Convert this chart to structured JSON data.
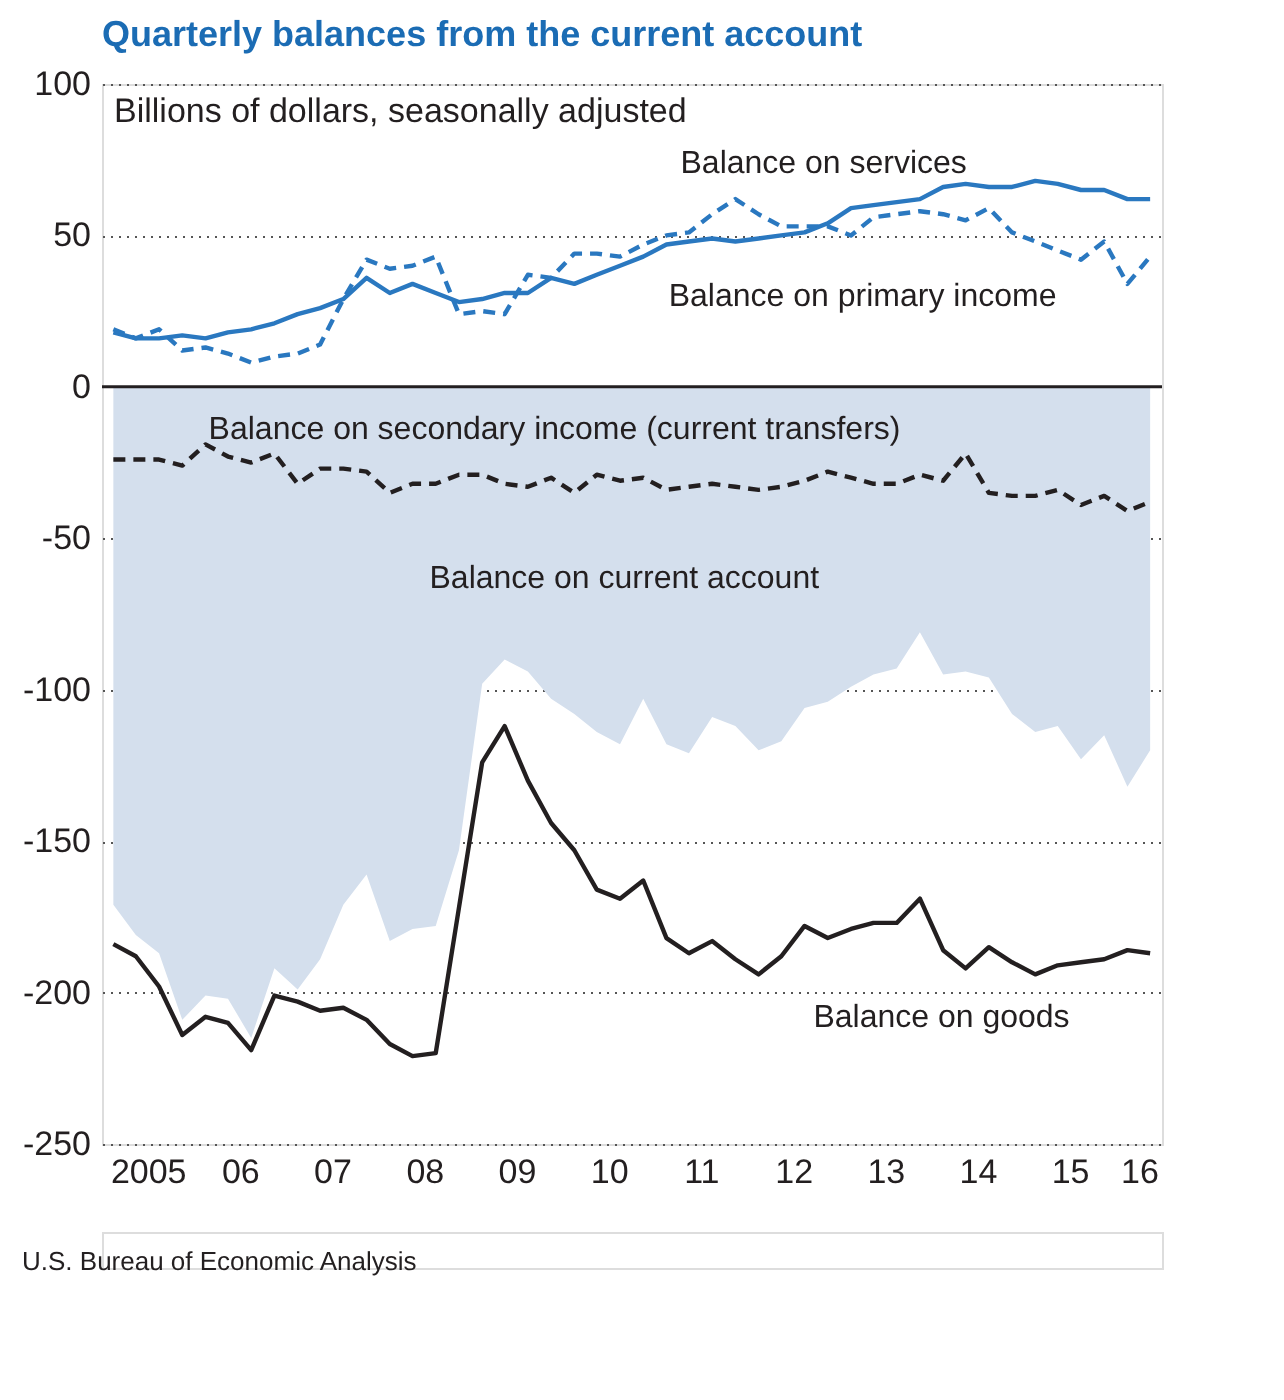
{
  "chart_data": {
    "type": "line",
    "title": "Quarterly balances from the current account",
    "subtitle": "Billions of dollars, seasonally adjusted",
    "x": [
      "2005-02-15",
      "2005-05-15",
      "2005-08-15",
      "2005-11-15",
      "2006-02-15",
      "2006-05-15",
      "2006-08-15",
      "2006-11-15",
      "2007-02-15",
      "2007-05-15",
      "2007-08-15",
      "2007-11-15",
      "2008-02-15",
      "2008-05-15",
      "2008-08-15",
      "2008-11-15",
      "2009-02-15",
      "2009-05-15",
      "2009-08-15",
      "2009-11-15",
      "2010-02-15",
      "2010-05-15",
      "2010-08-15",
      "2010-11-15",
      "2011-02-15",
      "2011-05-15",
      "2011-08-15",
      "2011-11-15",
      "2012-02-15",
      "2012-05-15",
      "2012-08-15",
      "2012-11-15",
      "2013-02-15",
      "2013-05-15",
      "2013-08-15",
      "2013-11-15",
      "2014-02-15",
      "2014-05-15",
      "2014-08-15",
      "2014-11-15",
      "2015-02-15",
      "2015-05-15",
      "2015-08-15",
      "2015-11-15",
      "2016-02-15",
      "2016-05-15"
    ],
    "series": [
      {
        "name": "Balance on current account",
        "type": "area",
        "color": "#d4dfed",
        "values": [
          -171,
          -181,
          -187,
          -209,
          -201,
          -202,
          -215,
          -192,
          -199,
          -189,
          -171,
          -161,
          -183,
          -179,
          -178,
          -153,
          -98,
          -90,
          -94,
          -103,
          -108,
          -114,
          -118,
          -103,
          -118,
          -121,
          -109,
          -112,
          -120,
          -117,
          -106,
          -104,
          -99,
          -95,
          -93,
          -81,
          -95,
          -94,
          -96,
          -108,
          -114,
          -112,
          -123,
          -115,
          -132,
          -120
        ]
      },
      {
        "name": "Balance on services",
        "line_style": "solid",
        "color": "#2a78c0",
        "values": [
          18,
          16,
          16,
          17,
          16,
          18,
          19,
          21,
          24,
          26,
          29,
          36,
          31,
          34,
          31,
          28,
          29,
          31,
          31,
          36,
          34,
          37,
          40,
          43,
          47,
          48,
          49,
          48,
          49,
          50,
          51,
          54,
          59,
          60,
          61,
          62,
          66,
          67,
          66,
          66,
          68,
          67,
          65,
          65,
          62,
          62
        ]
      },
      {
        "name": "Balance on primary income",
        "line_style": "dashed",
        "color": "#2a78c0",
        "values": [
          19,
          16,
          19,
          12,
          13,
          11,
          8,
          10,
          11,
          14,
          29,
          42,
          39,
          40,
          43,
          24,
          25,
          24,
          37,
          36,
          44,
          44,
          43,
          47,
          50,
          51,
          57,
          62,
          57,
          53,
          53,
          53,
          50,
          56,
          57,
          58,
          57,
          55,
          59,
          51,
          48,
          45,
          42,
          48,
          34,
          43
        ]
      },
      {
        "name": "Balance on secondary income (current transfers)",
        "line_style": "dashed",
        "color": "#231f20",
        "values": [
          -24,
          -24,
          -24,
          -26,
          -19,
          -23,
          -25,
          -22,
          -32,
          -27,
          -27,
          -28,
          -35,
          -32,
          -32,
          -29,
          -29,
          -32,
          -33,
          -30,
          -35,
          -29,
          -31,
          -30,
          -34,
          -33,
          -32,
          -33,
          -34,
          -33,
          -31,
          -28,
          -30,
          -32,
          -32,
          -29,
          -31,
          -22,
          -35,
          -36,
          -36,
          -34,
          -39,
          -36,
          -41,
          -38
        ]
      },
      {
        "name": "Balance on goods",
        "line_style": "solid",
        "color": "#231f20",
        "values": [
          -184,
          -188,
          -198,
          -214,
          -208,
          -210,
          -219,
          -201,
          -203,
          -206,
          -205,
          -209,
          -217,
          -221,
          -220,
          -172,
          -124,
          -112,
          -130,
          -144,
          -153,
          -166,
          -169,
          -163,
          -182,
          -187,
          -183,
          -189,
          -194,
          -188,
          -178,
          -182,
          -179,
          -177,
          -177,
          -169,
          -186,
          -192,
          -185,
          -190,
          -194,
          -191,
          -190,
          -189,
          -186,
          -187
        ]
      }
    ],
    "xlim": [
      "2005-01-01",
      "2016-07-01"
    ],
    "xticks": [
      {
        "value": "2005-07-01",
        "label": "2005"
      },
      {
        "value": "2006-07-01",
        "label": "06"
      },
      {
        "value": "2007-07-01",
        "label": "07"
      },
      {
        "value": "2008-07-01",
        "label": "08"
      },
      {
        "value": "2009-07-01",
        "label": "09"
      },
      {
        "value": "2010-07-01",
        "label": "10"
      },
      {
        "value": "2011-07-01",
        "label": "11"
      },
      {
        "value": "2012-07-01",
        "label": "12"
      },
      {
        "value": "2013-07-01",
        "label": "13"
      },
      {
        "value": "2014-07-01",
        "label": "14"
      },
      {
        "value": "2015-07-01",
        "label": "15"
      },
      {
        "value": "2016-04-01",
        "label": "16"
      }
    ],
    "ylim": [
      -250,
      100
    ],
    "yticks": [
      100,
      50,
      0,
      -50,
      -100,
      -150,
      -200,
      -250
    ],
    "grid": "y",
    "legend": false,
    "ref_lines": [
      {
        "axis": "y",
        "value": 0,
        "color": "#231f20",
        "line_style": "solid"
      }
    ],
    "annotations": [
      "U.S. Bureau of Economic Analysis"
    ]
  }
}
